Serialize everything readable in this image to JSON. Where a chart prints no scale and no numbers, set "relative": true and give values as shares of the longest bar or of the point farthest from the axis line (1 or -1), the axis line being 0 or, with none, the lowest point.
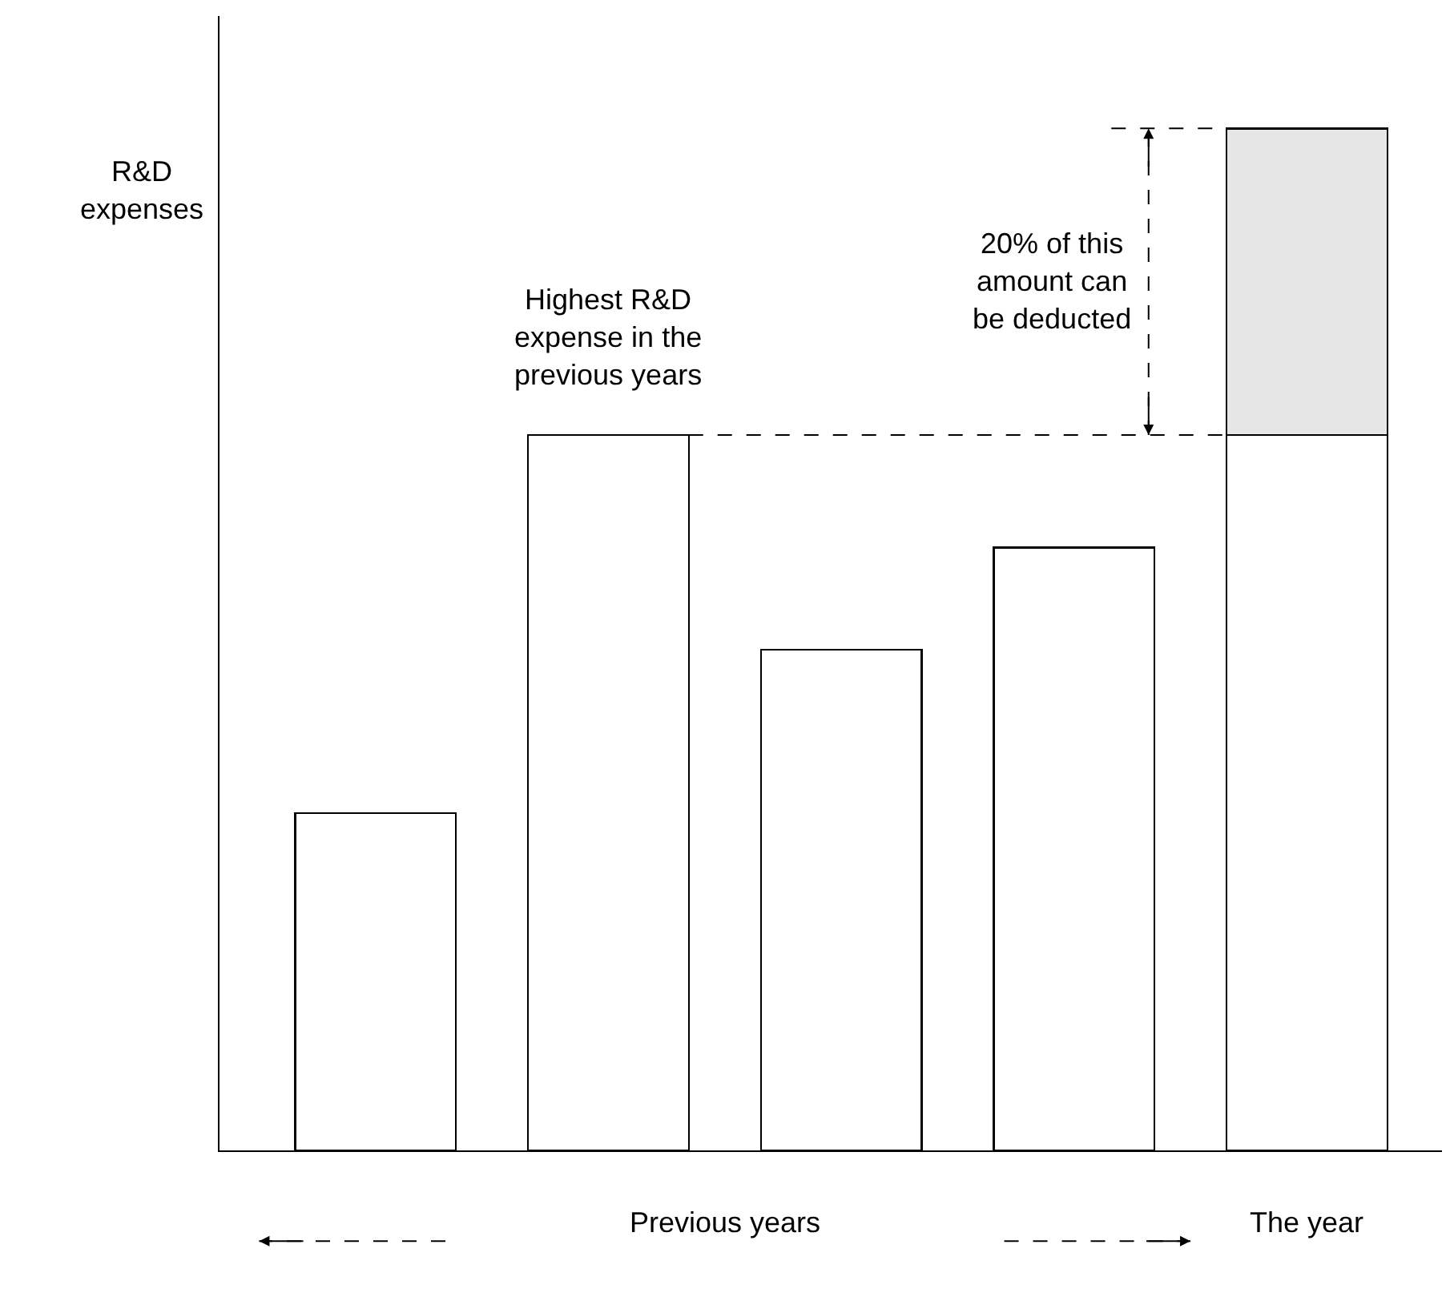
{
  "chart_data": {
    "type": "bar",
    "relative": true,
    "stacked": true,
    "ylabel": "R&D expenses",
    "categories": [
      null,
      null,
      null,
      null,
      null
    ],
    "series": [
      {
        "color": "#ffffff",
        "values": [
          0.33,
          0.7,
          0.49,
          0.59,
          0.7
        ]
      },
      {
        "color": "#e6e6e6",
        "values": [
          null,
          null,
          null,
          null,
          0.3
        ]
      }
    ],
    "ref_lines": [
      {
        "axis": "y",
        "value": 0.7,
        "line_style": "dashed"
      },
      {
        "axis": "y",
        "value": 1.0,
        "line_style": "dashed"
      }
    ],
    "annotations": [
      "Highest R&D expense in the previous years",
      "20% of this amount can be deducted",
      "Previous years",
      "The year"
    ]
  }
}
